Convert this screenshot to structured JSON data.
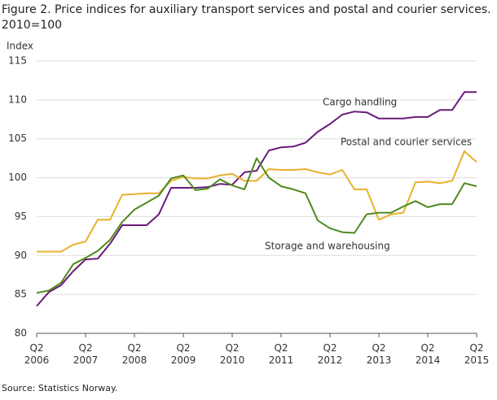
{
  "chart_data": {
    "type": "line",
    "title": "Figure 2. Price indices for auxiliary transport services and postal and courier services.",
    "subtitle": "2010=100",
    "y_label": "Index",
    "source": "Source: Statistics Norway.",
    "categories": [
      "Q2 2006",
      null,
      null,
      null,
      "Q2 2007",
      null,
      null,
      null,
      "Q2 2008",
      null,
      null,
      null,
      "Q2 2009",
      null,
      null,
      null,
      "Q2 2010",
      null,
      null,
      null,
      "Q2 2011",
      null,
      null,
      null,
      "Q2 2012",
      null,
      null,
      null,
      "Q2 2013",
      null,
      null,
      null,
      "Q2 2014",
      null,
      null,
      null,
      "Q2 2015"
    ],
    "series": [
      {
        "name": "Cargo handling",
        "color": "#6a1b7a",
        "values": [
          83.5,
          85.3,
          86.2,
          88.0,
          89.5,
          89.6,
          91.5,
          93.9,
          93.9,
          93.9,
          95.3,
          98.7,
          98.7,
          98.7,
          98.8,
          99.2,
          99.1,
          100.7,
          100.9,
          103.5,
          103.9,
          104.0,
          104.5,
          105.9,
          106.9,
          108.1,
          108.5,
          108.4,
          107.6,
          107.6,
          107.6,
          107.8,
          107.8,
          108.7,
          108.7,
          111.0,
          111.0
        ]
      },
      {
        "name": "Postal and courier services",
        "color": "#e8b12c",
        "values": [
          90.5,
          90.5,
          90.5,
          91.4,
          91.8,
          94.6,
          94.6,
          97.8,
          97.9,
          98.0,
          98.0,
          99.6,
          100.1,
          99.9,
          99.9,
          100.3,
          100.5,
          99.6,
          99.6,
          101.1,
          101.0,
          101.0,
          101.1,
          100.7,
          100.4,
          101.0,
          98.5,
          98.5,
          94.6,
          95.3,
          95.5,
          99.4,
          99.5,
          99.3,
          99.6,
          103.4,
          102.0
        ]
      },
      {
        "name": "Storage and warehousing",
        "color": "#4f8a1d",
        "values": [
          85.2,
          85.5,
          86.5,
          88.9,
          89.7,
          90.6,
          92.0,
          94.3,
          95.9,
          96.8,
          97.7,
          99.9,
          100.3,
          98.4,
          98.6,
          99.8,
          99.0,
          98.5,
          102.5,
          100.0,
          98.9,
          98.5,
          98.0,
          94.5,
          93.5,
          93.0,
          92.9,
          95.3,
          95.5,
          95.5,
          96.3,
          97.0,
          96.2,
          96.6,
          96.6,
          99.3,
          98.9
        ]
      }
    ],
    "ylim": [
      80,
      115
    ],
    "yticks": [
      80,
      85,
      90,
      95,
      100,
      105,
      110,
      115
    ],
    "grid": true
  }
}
